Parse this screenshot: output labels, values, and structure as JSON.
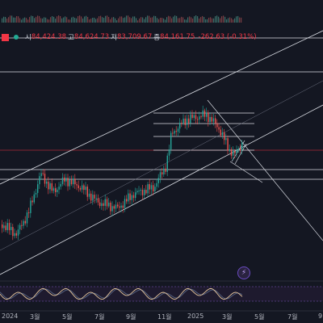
{
  "legend": {
    "open_label": "시",
    "open_value": "84,424.38",
    "high_label": "고",
    "high_value": "84,624.73",
    "low_label": "저",
    "low_value": "83,709.67",
    "close_label": "종",
    "close_value": "84,161.75",
    "change": "-262.63 (-0.31%)"
  },
  "time_axis": {
    "labels": [
      "2024",
      "3월",
      "5월",
      "7월",
      "9월",
      "11월",
      "2025",
      "3월",
      "5월",
      "7월",
      "9"
    ]
  },
  "colors": {
    "background": "#141722",
    "up": "#26a69a",
    "down": "#ef5350",
    "drawing": "#d8dbe2",
    "oscillator": "#e8c9a0",
    "accent": "#f23645"
  },
  "icons": {
    "indicator_button": "lightning-icon"
  },
  "chart_data": {
    "type": "candlestick",
    "title": "",
    "last_close": 84161.75
  }
}
